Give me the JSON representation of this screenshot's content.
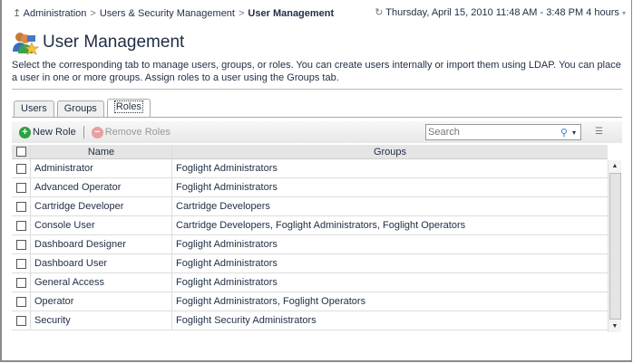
{
  "breadcrumb": {
    "items": [
      "Administration",
      "Users & Security Management"
    ],
    "current": "User Management"
  },
  "time_range": "Thursday, April 15, 2010 11:48 AM - 3:48 PM 4 hours",
  "page": {
    "title": "User Management",
    "description": "Select the corresponding tab to manage users, groups, or roles. You can create users internally or import them using LDAP. You can place a user in one or more groups. Assign roles to a user using the Groups tab."
  },
  "tabs": [
    {
      "label": "Users"
    },
    {
      "label": "Groups"
    },
    {
      "label": "Roles",
      "active": true
    }
  ],
  "toolbar": {
    "new_label": "New Role",
    "remove_label": "Remove Roles",
    "search_placeholder": "Search"
  },
  "table": {
    "columns": [
      "Name",
      "Groups"
    ],
    "rows": [
      {
        "name": "Administrator",
        "groups": "Foglight Administrators"
      },
      {
        "name": "Advanced Operator",
        "groups": "Foglight Administrators"
      },
      {
        "name": "Cartridge Developer",
        "groups": "Cartridge Developers"
      },
      {
        "name": "Console User",
        "groups": "Cartridge Developers, Foglight Administrators, Foglight Operators"
      },
      {
        "name": "Dashboard Designer",
        "groups": "Foglight Administrators"
      },
      {
        "name": "Dashboard User",
        "groups": "Foglight Administrators"
      },
      {
        "name": "General Access",
        "groups": "Foglight Administrators"
      },
      {
        "name": "Operator",
        "groups": "Foglight Administrators, Foglight Operators"
      },
      {
        "name": "Security",
        "groups": "Foglight Security Administrators"
      }
    ]
  },
  "colors": {
    "add": "#2ea043",
    "remove": "#e8a0a0",
    "header_bg": "#e5e5e5"
  }
}
